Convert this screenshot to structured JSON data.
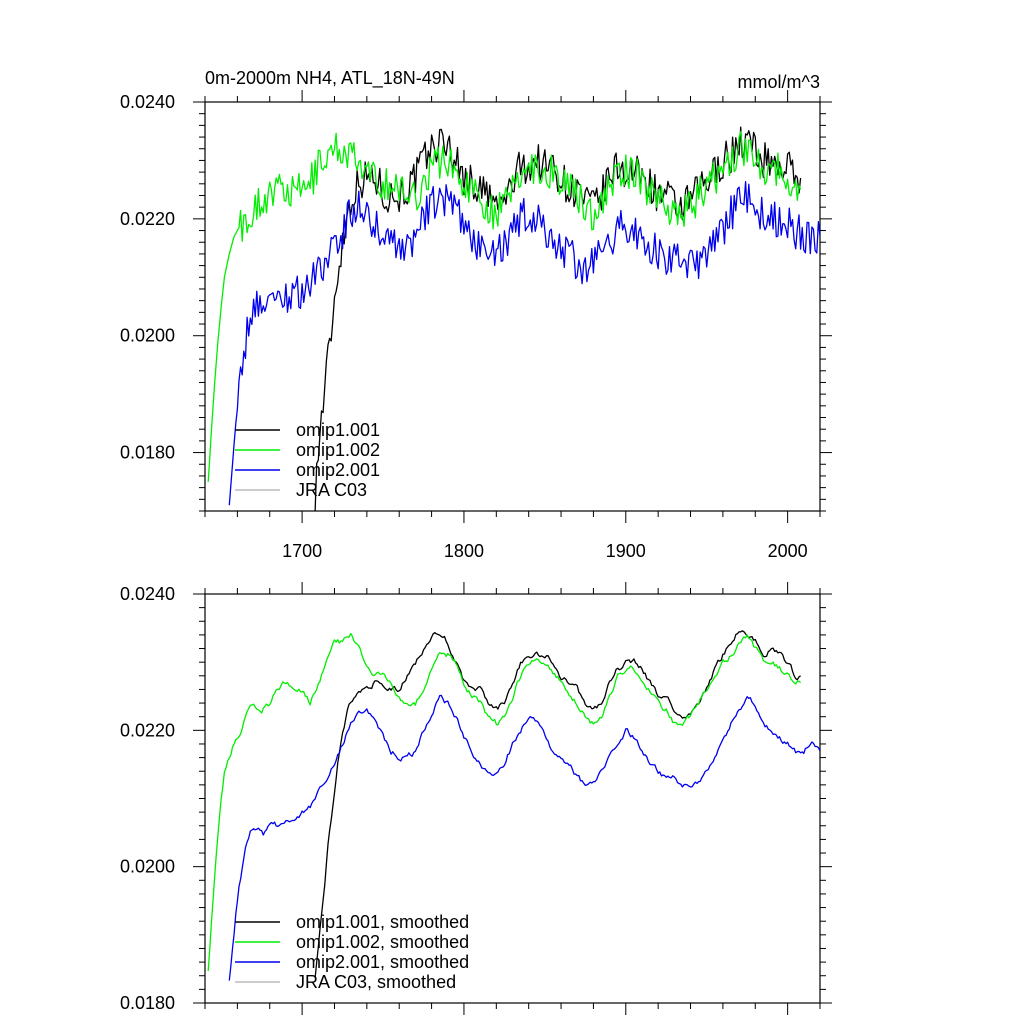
{
  "title": "0m-2000m NH4, ATL_18N-49N",
  "units": "mmol/m^3",
  "colors": {
    "omip1_001": "#000000",
    "omip1_002": "#00ee00",
    "omip2_001": "#0000ee",
    "jra_c03": "#bbbbbb"
  },
  "chart_data": [
    {
      "type": "line",
      "panel": "top",
      "title": "0m-2000m NH4, ATL_18N-49N",
      "units_label": "mmol/m^3",
      "xlim": [
        1640,
        2020
      ],
      "ylim": [
        0.017,
        0.024
      ],
      "x_ticks": [
        1700,
        1800,
        1900,
        2000
      ],
      "x_tick_labels": [
        "1700",
        "1800",
        "1900",
        "2000"
      ],
      "y_ticks": [
        0.018,
        0.02,
        0.022,
        0.024
      ],
      "y_tick_labels": [
        "0.0180",
        "0.0200",
        "0.0220",
        "0.0240"
      ],
      "legend_position": "bottom-left",
      "noise": 1,
      "series": [
        {
          "name": "omip1.001",
          "color_key": "omip1_001",
          "x": [
            1708,
            1710,
            1712,
            1714,
            1716,
            1718,
            1720,
            1722,
            1725,
            1728,
            1732,
            1738,
            1745,
            1752,
            1760,
            1768,
            1775,
            1780,
            1785,
            1790,
            1795,
            1800,
            1805,
            1810,
            1815,
            1820,
            1825,
            1830,
            1835,
            1840,
            1845,
            1850,
            1855,
            1860,
            1865,
            1870,
            1875,
            1880,
            1885,
            1890,
            1895,
            1900,
            1905,
            1910,
            1915,
            1920,
            1925,
            1930,
            1935,
            1940,
            1945,
            1950,
            1955,
            1960,
            1965,
            1970,
            1975,
            1980,
            1985,
            1990,
            1995,
            2000,
            2005,
            2008
          ],
          "y": [
            0.0173,
            0.018,
            0.0186,
            0.0191,
            0.0196,
            0.0201,
            0.0206,
            0.0211,
            0.0216,
            0.0221,
            0.0225,
            0.0227,
            0.0227,
            0.0224,
            0.0224,
            0.0226,
            0.023,
            0.0232,
            0.0233,
            0.0233,
            0.023,
            0.0227,
            0.0226,
            0.0225,
            0.0224,
            0.0222,
            0.0223,
            0.0226,
            0.0229,
            0.0229,
            0.023,
            0.0229,
            0.0229,
            0.0227,
            0.0225,
            0.0225,
            0.0223,
            0.0222,
            0.0224,
            0.0227,
            0.0229,
            0.0228,
            0.0228,
            0.0227,
            0.0226,
            0.0224,
            0.0224,
            0.0222,
            0.0222,
            0.0223,
            0.0225,
            0.0226,
            0.0228,
            0.023,
            0.0231,
            0.0233,
            0.0233,
            0.0232,
            0.023,
            0.023,
            0.0229,
            0.0229,
            0.0227,
            0.0227
          ]
        },
        {
          "name": "omip1.002",
          "color_key": "omip1_002",
          "x": [
            1642,
            1644,
            1646,
            1648,
            1650,
            1652,
            1655,
            1658,
            1662,
            1666,
            1670,
            1675,
            1680,
            1685,
            1690,
            1695,
            1700,
            1705,
            1710,
            1715,
            1720,
            1725,
            1730,
            1735,
            1740,
            1745,
            1750,
            1755,
            1760,
            1765,
            1770,
            1775,
            1780,
            1785,
            1790,
            1795,
            1800,
            1805,
            1810,
            1815,
            1820,
            1825,
            1830,
            1835,
            1840,
            1845,
            1850,
            1855,
            1860,
            1865,
            1870,
            1875,
            1880,
            1885,
            1890,
            1895,
            1900,
            1905,
            1910,
            1915,
            1920,
            1925,
            1930,
            1935,
            1940,
            1945,
            1950,
            1955,
            1960,
            1965,
            1970,
            1975,
            1980,
            1985,
            1990,
            1995,
            2000,
            2005,
            2008
          ],
          "y": [
            0.0175,
            0.0184,
            0.0192,
            0.0199,
            0.0205,
            0.021,
            0.0214,
            0.0217,
            0.0219,
            0.022,
            0.0222,
            0.0223,
            0.0224,
            0.0225,
            0.0225,
            0.0224,
            0.0225,
            0.0226,
            0.0229,
            0.0231,
            0.0232,
            0.0232,
            0.0231,
            0.0229,
            0.0227,
            0.0227,
            0.0226,
            0.0226,
            0.0225,
            0.0224,
            0.0224,
            0.0226,
            0.0229,
            0.023,
            0.023,
            0.0228,
            0.0226,
            0.0225,
            0.0224,
            0.0222,
            0.0221,
            0.0222,
            0.0225,
            0.0228,
            0.0229,
            0.0229,
            0.0228,
            0.0228,
            0.0227,
            0.0225,
            0.0224,
            0.0222,
            0.0221,
            0.0223,
            0.0225,
            0.0228,
            0.0228,
            0.0228,
            0.0226,
            0.0225,
            0.0224,
            0.0223,
            0.0221,
            0.0221,
            0.0222,
            0.0224,
            0.0225,
            0.0227,
            0.0229,
            0.023,
            0.0232,
            0.0232,
            0.0231,
            0.0229,
            0.0229,
            0.0228,
            0.0227,
            0.0225,
            0.0225
          ]
        },
        {
          "name": "omip2.001",
          "color_key": "omip2_001",
          "x": [
            1655,
            1657,
            1659,
            1661,
            1663,
            1665,
            1668,
            1672,
            1676,
            1680,
            1685,
            1690,
            1695,
            1700,
            1705,
            1710,
            1715,
            1720,
            1725,
            1730,
            1735,
            1740,
            1745,
            1750,
            1755,
            1760,
            1765,
            1770,
            1775,
            1780,
            1785,
            1790,
            1795,
            1800,
            1805,
            1810,
            1815,
            1820,
            1825,
            1830,
            1835,
            1840,
            1845,
            1850,
            1855,
            1860,
            1865,
            1870,
            1875,
            1880,
            1885,
            1890,
            1895,
            1900,
            1905,
            1910,
            1915,
            1920,
            1925,
            1930,
            1935,
            1940,
            1945,
            1950,
            1955,
            1960,
            1965,
            1970,
            1975,
            1980,
            1985,
            1990,
            1995,
            2000,
            2005,
            2010,
            2015,
            2020
          ],
          "y": [
            0.0171,
            0.0178,
            0.0185,
            0.019,
            0.0195,
            0.0199,
            0.0203,
            0.0206,
            0.0206,
            0.0206,
            0.0206,
            0.0207,
            0.0207,
            0.0208,
            0.0209,
            0.0211,
            0.0213,
            0.0215,
            0.0218,
            0.0221,
            0.0222,
            0.0221,
            0.0219,
            0.0217,
            0.0216,
            0.0216,
            0.0215,
            0.0217,
            0.022,
            0.0222,
            0.0224,
            0.0223,
            0.0221,
            0.0219,
            0.0217,
            0.0215,
            0.0214,
            0.0214,
            0.0215,
            0.0218,
            0.022,
            0.0221,
            0.022,
            0.0218,
            0.0216,
            0.0215,
            0.0214,
            0.0212,
            0.0212,
            0.0212,
            0.0214,
            0.0216,
            0.0218,
            0.0219,
            0.0218,
            0.0217,
            0.0215,
            0.0214,
            0.0213,
            0.0213,
            0.0212,
            0.0212,
            0.0212,
            0.0214,
            0.0216,
            0.0218,
            0.0221,
            0.0223,
            0.0224,
            0.0223,
            0.022,
            0.022,
            0.022,
            0.0219,
            0.0218,
            0.0217,
            0.0216,
            0.0217
          ]
        },
        {
          "name": "JRA C03",
          "color_key": "jra_c03",
          "x": [],
          "y": []
        }
      ]
    },
    {
      "type": "line",
      "panel": "bottom",
      "title": "",
      "xlim": [
        1640,
        2020
      ],
      "ylim": [
        0.018,
        0.024
      ],
      "x_ticks": [
        1700,
        1800,
        1900,
        2000
      ],
      "x_tick_labels": [],
      "y_ticks": [
        0.018,
        0.02,
        0.022,
        0.024
      ],
      "y_tick_labels": [
        "0.0180",
        "0.0200",
        "0.0220",
        "0.0240"
      ],
      "legend_position": "bottom-left",
      "noise": 0.35,
      "series": [
        {
          "name": "omip1.001, smoothed",
          "color_key": "omip1_001",
          "x": [
            1708,
            1710,
            1712,
            1714,
            1716,
            1718,
            1720,
            1722,
            1725,
            1728,
            1732,
            1738,
            1745,
            1752,
            1760,
            1768,
            1775,
            1780,
            1785,
            1790,
            1795,
            1800,
            1805,
            1810,
            1815,
            1820,
            1825,
            1830,
            1835,
            1840,
            1845,
            1850,
            1855,
            1860,
            1865,
            1870,
            1875,
            1880,
            1885,
            1890,
            1895,
            1900,
            1905,
            1910,
            1915,
            1920,
            1925,
            1930,
            1935,
            1940,
            1945,
            1950,
            1955,
            1960,
            1965,
            1970,
            1975,
            1980,
            1985,
            1990,
            1995,
            2000,
            2005,
            2008
          ],
          "y": [
            0.0184,
            0.0188,
            0.0193,
            0.0198,
            0.0203,
            0.0207,
            0.0211,
            0.0215,
            0.0219,
            0.0223,
            0.0225,
            0.0226,
            0.0227,
            0.0226,
            0.0226,
            0.0229,
            0.0232,
            0.0234,
            0.0234,
            0.0233,
            0.023,
            0.0227,
            0.0226,
            0.0226,
            0.0224,
            0.0223,
            0.0224,
            0.0227,
            0.023,
            0.0231,
            0.0231,
            0.0231,
            0.023,
            0.0228,
            0.0227,
            0.0226,
            0.0224,
            0.0223,
            0.0224,
            0.0227,
            0.0229,
            0.023,
            0.023,
            0.0229,
            0.0227,
            0.0225,
            0.0225,
            0.0223,
            0.0222,
            0.0222,
            0.0224,
            0.0226,
            0.0229,
            0.0231,
            0.0233,
            0.0235,
            0.0234,
            0.0233,
            0.0231,
            0.0232,
            0.0231,
            0.023,
            0.0228,
            0.0228
          ]
        },
        {
          "name": "omip1.002, smoothed",
          "color_key": "omip1_002",
          "x": [
            1642,
            1644,
            1646,
            1648,
            1650,
            1652,
            1655,
            1658,
            1662,
            1666,
            1670,
            1675,
            1680,
            1685,
            1690,
            1695,
            1700,
            1705,
            1710,
            1715,
            1720,
            1725,
            1730,
            1735,
            1740,
            1745,
            1750,
            1755,
            1760,
            1765,
            1770,
            1775,
            1780,
            1785,
            1790,
            1795,
            1800,
            1805,
            1810,
            1815,
            1820,
            1825,
            1830,
            1835,
            1840,
            1845,
            1850,
            1855,
            1860,
            1865,
            1870,
            1875,
            1880,
            1885,
            1890,
            1895,
            1900,
            1905,
            1910,
            1915,
            1920,
            1925,
            1930,
            1935,
            1940,
            1945,
            1950,
            1955,
            1960,
            1965,
            1970,
            1975,
            1980,
            1985,
            1990,
            1995,
            2000,
            2005,
            2008
          ],
          "y": [
            0.0185,
            0.0192,
            0.0199,
            0.0205,
            0.021,
            0.0214,
            0.0216,
            0.0218,
            0.022,
            0.0223,
            0.0224,
            0.0223,
            0.0224,
            0.0226,
            0.0227,
            0.0226,
            0.0226,
            0.0224,
            0.0227,
            0.023,
            0.0233,
            0.0233,
            0.0234,
            0.0232,
            0.0229,
            0.0228,
            0.0228,
            0.0227,
            0.0225,
            0.0224,
            0.0224,
            0.0226,
            0.0229,
            0.0231,
            0.0231,
            0.023,
            0.0227,
            0.0225,
            0.0224,
            0.0222,
            0.0221,
            0.0222,
            0.0225,
            0.0228,
            0.023,
            0.023,
            0.023,
            0.0228,
            0.0227,
            0.0225,
            0.0224,
            0.0222,
            0.0221,
            0.0222,
            0.0225,
            0.0228,
            0.0229,
            0.0229,
            0.0227,
            0.0226,
            0.0224,
            0.0223,
            0.0221,
            0.0221,
            0.0222,
            0.0224,
            0.0226,
            0.0228,
            0.023,
            0.0231,
            0.0233,
            0.0234,
            0.0232,
            0.023,
            0.023,
            0.0229,
            0.0228,
            0.0227,
            0.0227
          ]
        },
        {
          "name": "omip2.001, smoothed",
          "color_key": "omip2_001",
          "x": [
            1655,
            1657,
            1659,
            1661,
            1663,
            1665,
            1668,
            1672,
            1676,
            1680,
            1685,
            1690,
            1695,
            1700,
            1705,
            1710,
            1715,
            1720,
            1725,
            1730,
            1735,
            1740,
            1745,
            1750,
            1755,
            1760,
            1765,
            1770,
            1775,
            1780,
            1785,
            1790,
            1795,
            1800,
            1805,
            1810,
            1815,
            1820,
            1825,
            1830,
            1835,
            1840,
            1845,
            1850,
            1855,
            1860,
            1865,
            1870,
            1875,
            1880,
            1885,
            1890,
            1895,
            1900,
            1905,
            1910,
            1915,
            1920,
            1925,
            1930,
            1935,
            1940,
            1945,
            1950,
            1955,
            1960,
            1965,
            1970,
            1975,
            1980,
            1985,
            1990,
            1995,
            2000,
            2005,
            2010,
            2015,
            2020
          ],
          "y": [
            0.0183,
            0.0188,
            0.0193,
            0.0197,
            0.02,
            0.0203,
            0.0205,
            0.0206,
            0.0205,
            0.0206,
            0.0206,
            0.0207,
            0.0207,
            0.0208,
            0.0209,
            0.0211,
            0.0213,
            0.0215,
            0.0218,
            0.0221,
            0.0223,
            0.0223,
            0.0221,
            0.0219,
            0.0217,
            0.0216,
            0.0216,
            0.0217,
            0.022,
            0.0222,
            0.0225,
            0.0224,
            0.0222,
            0.0219,
            0.0217,
            0.0215,
            0.0214,
            0.0214,
            0.0215,
            0.0218,
            0.022,
            0.0222,
            0.0221,
            0.0219,
            0.0217,
            0.0216,
            0.0215,
            0.0213,
            0.0212,
            0.0212,
            0.0214,
            0.0216,
            0.0218,
            0.022,
            0.0219,
            0.0217,
            0.0215,
            0.0214,
            0.0213,
            0.0213,
            0.0212,
            0.0212,
            0.0212,
            0.0214,
            0.0216,
            0.0218,
            0.0221,
            0.0223,
            0.0225,
            0.0224,
            0.0221,
            0.022,
            0.0219,
            0.0218,
            0.0217,
            0.0217,
            0.0218,
            0.0217
          ]
        },
        {
          "name": "JRA C03, smoothed",
          "color_key": "jra_c03",
          "x": [],
          "y": []
        }
      ]
    }
  ]
}
